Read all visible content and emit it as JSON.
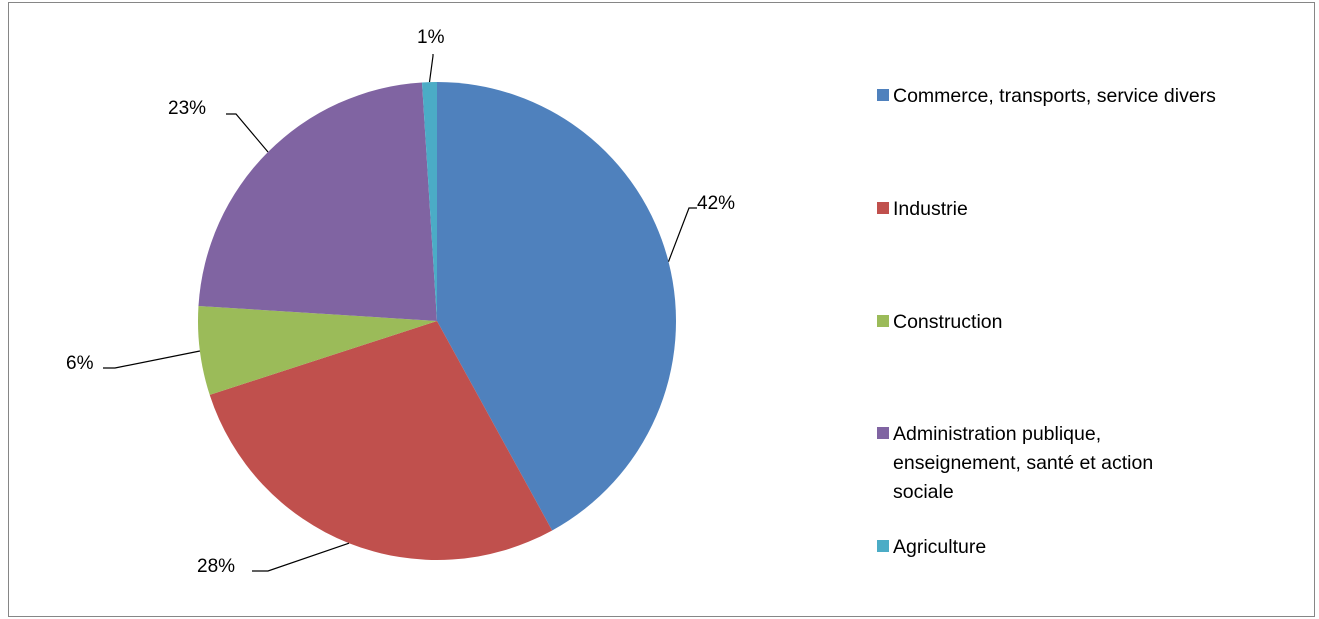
{
  "chart_data": {
    "type": "pie",
    "categories": [
      "Commerce, transports, service divers",
      "Industrie",
      "Construction",
      "Administration publique, enseignement, santé et action sociale",
      "Agriculture"
    ],
    "values": [
      42,
      28,
      6,
      23,
      1
    ],
    "data_labels": [
      "42%",
      "28%",
      "6%",
      "23%",
      "1%"
    ],
    "colors": [
      "#4F81BD",
      "#C0504D",
      "#9BBB59",
      "#8064A2",
      "#4BACC6"
    ],
    "legend_position": "right",
    "title": ""
  }
}
